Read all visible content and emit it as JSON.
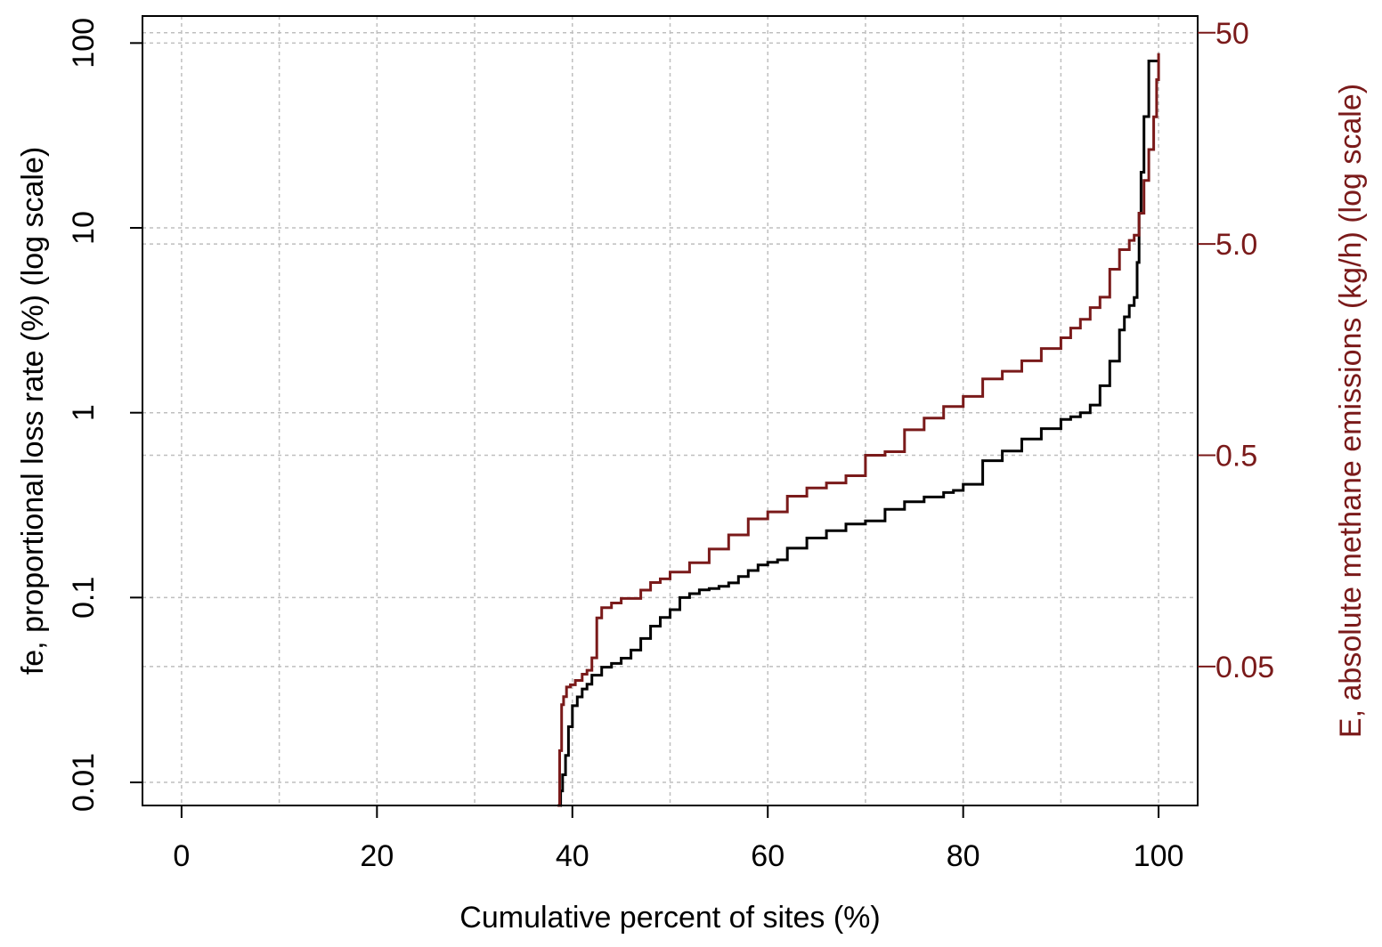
{
  "chart_data": {
    "type": "line",
    "xlabel": "Cumulative percent of sites (%)",
    "ylabel_left": "fe, proportional loss rate (%) (log scale)",
    "ylabel_right": "E, absolute methane emissions (kg/h) (log scale)",
    "x_range": [
      -4,
      104
    ],
    "x_ticks": [
      0,
      20,
      40,
      60,
      80,
      100
    ],
    "x_tick_labels": [
      "0",
      "20",
      "40",
      "60",
      "80",
      "100"
    ],
    "left_axis": {
      "scale": "log",
      "range": [
        0.0075,
        140
      ],
      "ticks": [
        0.01,
        0.1,
        1,
        10,
        100
      ],
      "tick_labels": [
        "0.01",
        "0.1",
        "1",
        "10",
        "100"
      ]
    },
    "right_axis": {
      "scale": "log",
      "range": [
        0.011,
        60
      ],
      "ticks": [
        0.05,
        0.5,
        5.0,
        50
      ],
      "tick_labels": [
        "0.05",
        "0.5",
        "5.0",
        "50"
      ]
    },
    "grid": true,
    "colors": {
      "fe_series": "#000000",
      "emissions_series": "#7a1a1a",
      "grid": "#bfbfbf",
      "right_axis_text": "#7a1a1a"
    },
    "series": [
      {
        "axis": "left",
        "x": [
          38.5,
          38.8,
          39.0,
          39.3,
          39.6,
          40.0,
          40.5,
          41.0,
          41.5,
          42.0,
          43.0,
          44.0,
          45.0,
          46.0,
          47.0,
          48.0,
          49.0,
          50.0,
          51.0,
          52.0,
          53.0,
          54.0,
          55.0,
          56.0,
          57.0,
          58.0,
          59.0,
          60.0,
          61.0,
          62.0,
          64.0,
          66.0,
          68.0,
          70.0,
          72.0,
          74.0,
          76.0,
          78.0,
          79.0,
          80.0,
          82.0,
          84.0,
          86.0,
          88.0,
          90.0,
          91.0,
          92.0,
          93.0,
          94.0,
          95.0,
          96.0,
          96.5,
          97.0,
          97.5,
          97.8,
          98.0,
          98.2,
          98.5,
          99.0,
          99.5,
          100.0
        ],
        "y": [
          0.0075,
          0.009,
          0.011,
          0.014,
          0.02,
          0.026,
          0.029,
          0.032,
          0.034,
          0.038,
          0.042,
          0.044,
          0.047,
          0.052,
          0.06,
          0.07,
          0.078,
          0.086,
          0.1,
          0.105,
          0.11,
          0.112,
          0.115,
          0.12,
          0.13,
          0.14,
          0.15,
          0.155,
          0.16,
          0.185,
          0.21,
          0.23,
          0.25,
          0.26,
          0.3,
          0.33,
          0.35,
          0.37,
          0.38,
          0.41,
          0.55,
          0.62,
          0.72,
          0.82,
          0.92,
          0.95,
          1.0,
          1.1,
          1.4,
          1.9,
          2.8,
          3.3,
          3.8,
          4.2,
          6.5,
          12,
          20,
          40,
          80,
          80,
          80
        ]
      },
      {
        "axis": "right",
        "x": [
          38.5,
          38.7,
          38.9,
          39.1,
          39.4,
          39.8,
          40.3,
          41.0,
          41.5,
          42.0,
          42.5,
          43.0,
          44.0,
          45.0,
          46.0,
          47.0,
          48.0,
          49.0,
          50.0,
          52.0,
          54.0,
          56.0,
          58.0,
          60.0,
          62.0,
          64.0,
          66.0,
          68.0,
          70.0,
          72.0,
          74.0,
          76.0,
          78.0,
          80.0,
          82.0,
          84.0,
          86.0,
          88.0,
          90.0,
          91.0,
          92.0,
          93.0,
          94.0,
          95.0,
          96.0,
          97.0,
          97.5,
          98.0,
          98.5,
          99.0,
          99.5,
          99.8,
          100.0
        ],
        "y": [
          0.011,
          0.02,
          0.033,
          0.036,
          0.04,
          0.041,
          0.043,
          0.046,
          0.048,
          0.055,
          0.085,
          0.095,
          0.1,
          0.105,
          0.105,
          0.115,
          0.125,
          0.13,
          0.14,
          0.155,
          0.18,
          0.21,
          0.25,
          0.27,
          0.32,
          0.35,
          0.37,
          0.4,
          0.5,
          0.52,
          0.66,
          0.75,
          0.85,
          0.95,
          1.15,
          1.25,
          1.4,
          1.6,
          1.8,
          2.0,
          2.2,
          2.5,
          2.8,
          3.8,
          4.7,
          5.2,
          5.5,
          7.0,
          10,
          14,
          20,
          30,
          40
        ]
      }
    ]
  }
}
